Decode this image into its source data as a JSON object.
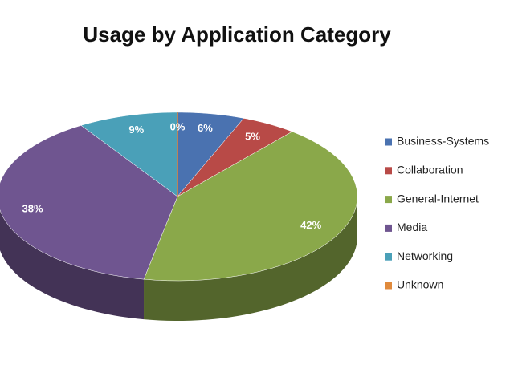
{
  "chart_data": {
    "type": "pie",
    "title": "Usage by Application Category",
    "categories": [
      "Business-Systems",
      "Collaboration",
      "General-Internet",
      "Media",
      "Networking",
      "Unknown"
    ],
    "values": [
      6,
      5,
      42,
      38,
      9,
      0
    ],
    "value_labels": [
      "6%",
      "5%",
      "42%",
      "38%",
      "9%",
      "0%"
    ],
    "colors": [
      "#4a72b0",
      "#b84a47",
      "#8aa84a",
      "#6f5590",
      "#4aa0b8",
      "#e08a3c"
    ],
    "legend": "right"
  }
}
